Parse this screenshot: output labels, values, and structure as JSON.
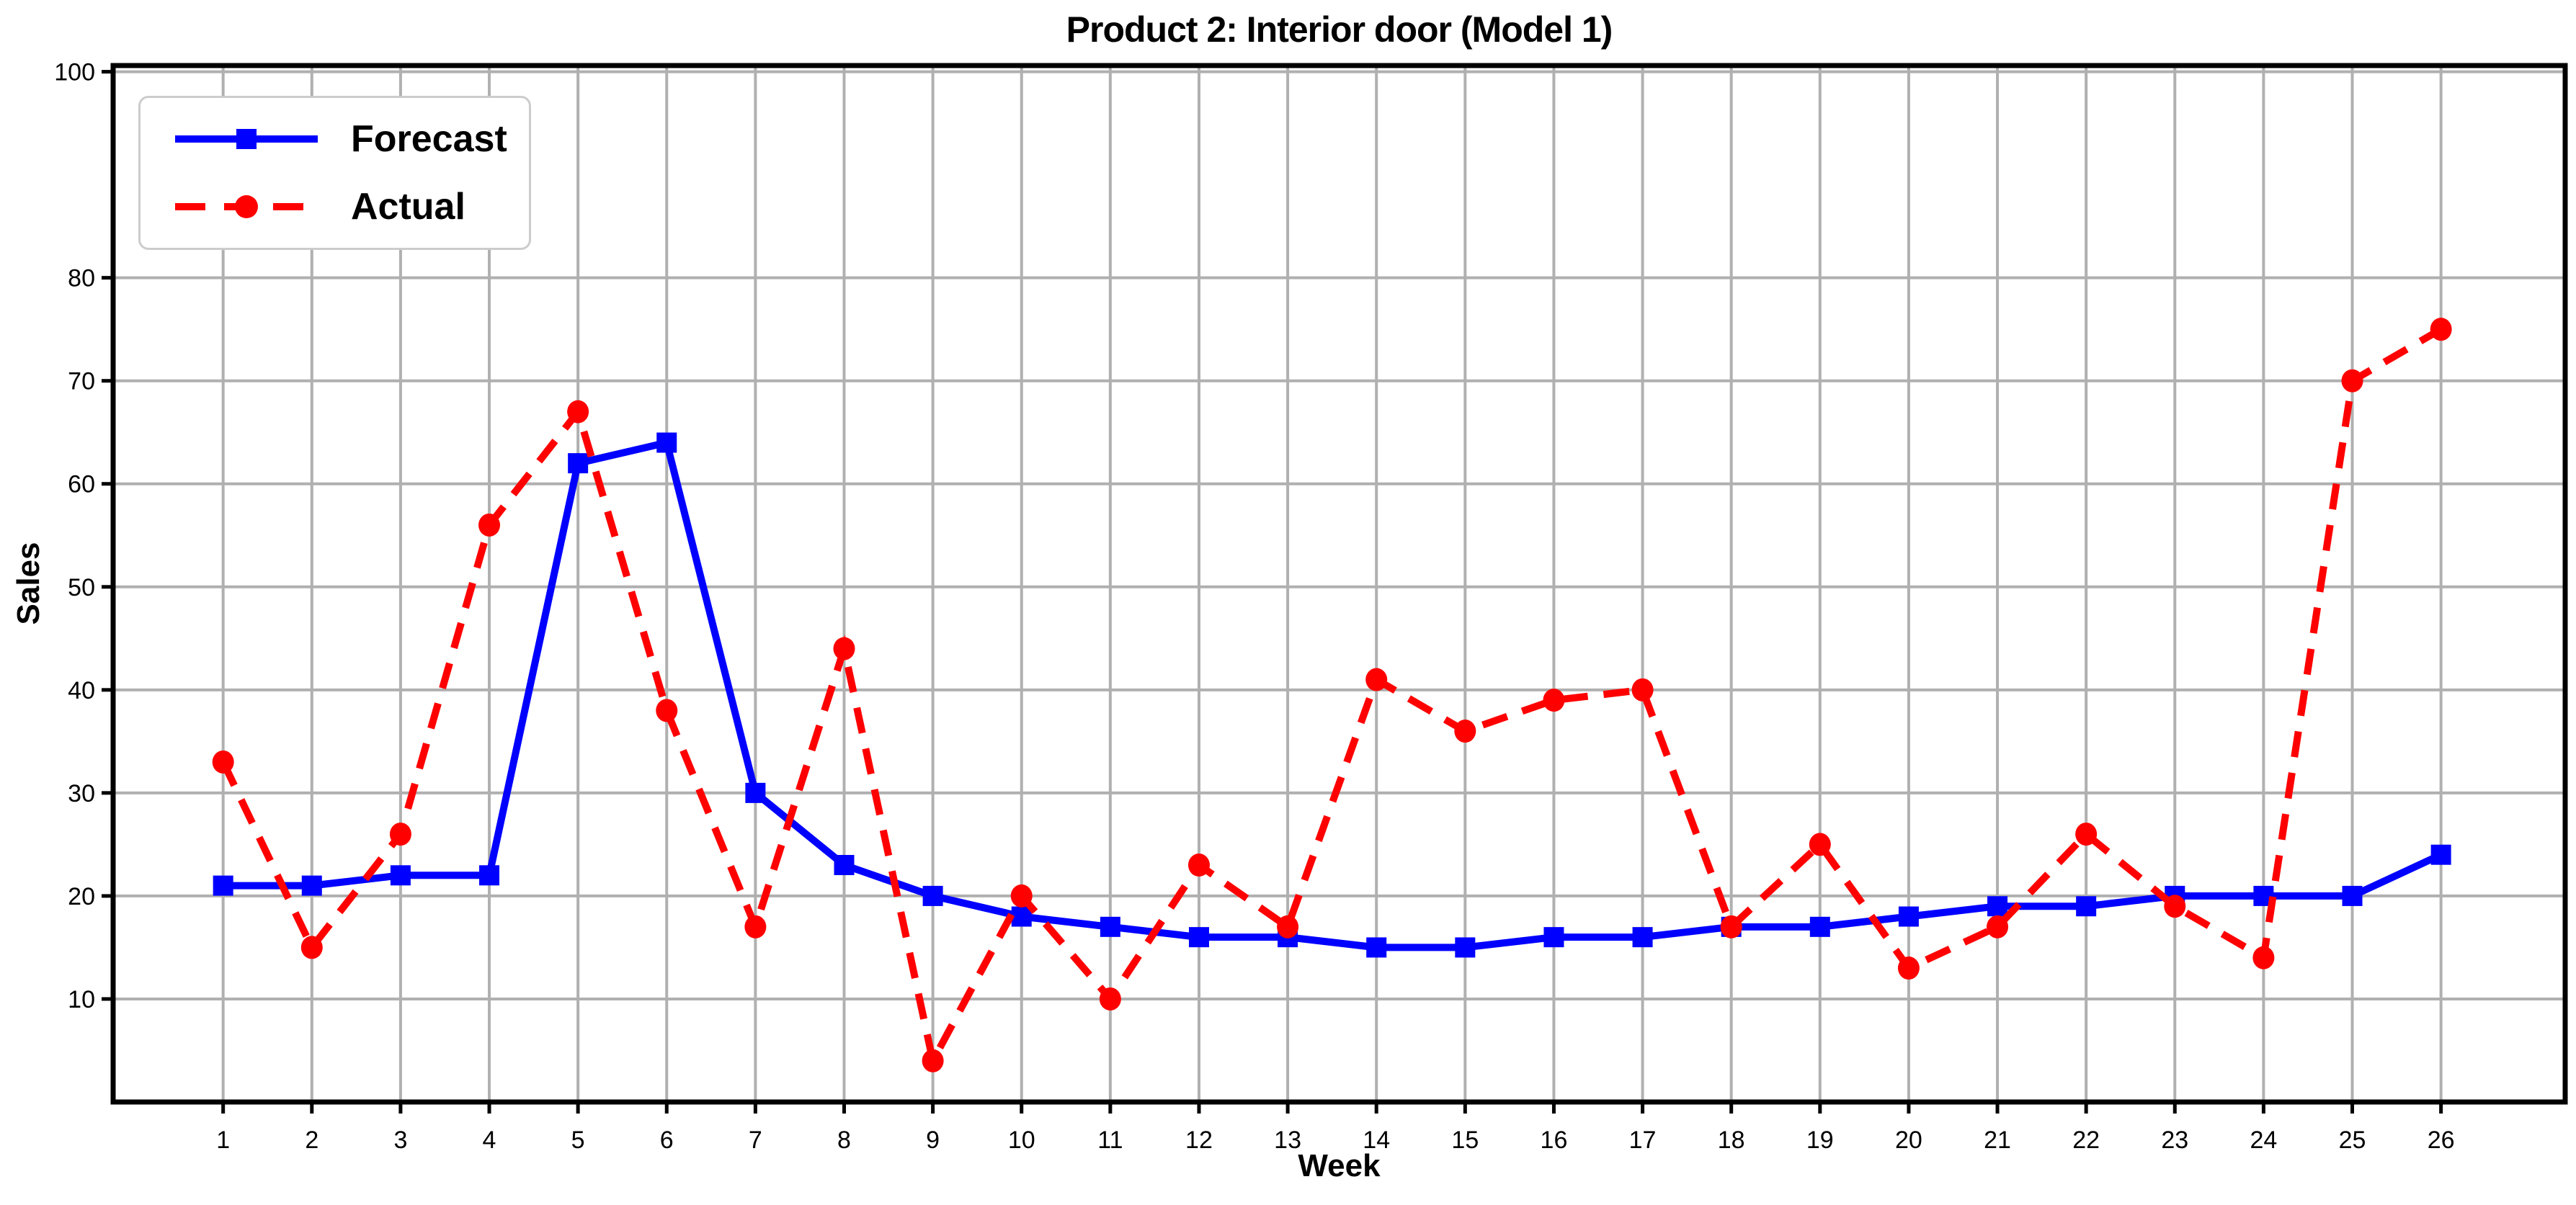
{
  "chart_data": {
    "type": "line",
    "title": "Product 2: Interior door (Model 1)",
    "xlabel": "Week",
    "ylabel": "Sales",
    "x": [
      1,
      2,
      3,
      4,
      5,
      6,
      7,
      8,
      9,
      10,
      11,
      12,
      13,
      14,
      15,
      16,
      17,
      18,
      19,
      20,
      21,
      22,
      23,
      24,
      25,
      26
    ],
    "series": [
      {
        "name": "Forecast",
        "color": "#0000ff",
        "line_style": "solid",
        "marker": "square",
        "values": [
          21,
          21,
          22,
          22,
          62,
          64,
          30,
          23,
          20,
          18,
          17,
          16,
          16,
          15,
          15,
          16,
          16,
          17,
          17,
          18,
          19,
          19,
          20,
          20,
          20,
          24
        ]
      },
      {
        "name": "Actual",
        "color": "#ff0000",
        "line_style": "dashed",
        "marker": "circle",
        "values": [
          33,
          15,
          26,
          56,
          67,
          38,
          17,
          44,
          4,
          20,
          10,
          23,
          17,
          41,
          36,
          39,
          40,
          17,
          25,
          13,
          17,
          26,
          19,
          14,
          70,
          75
        ]
      }
    ],
    "xticks": [
      1,
      2,
      3,
      4,
      5,
      6,
      7,
      8,
      9,
      10,
      11,
      12,
      13,
      14,
      15,
      16,
      17,
      18,
      19,
      20,
      21,
      22,
      23,
      24,
      25,
      26
    ],
    "yticks": [
      10,
      20,
      30,
      40,
      50,
      60,
      70,
      80,
      100
    ],
    "xlim": [
      -0.24,
      27.4
    ],
    "ylim": [
      0,
      100.6
    ],
    "grid": true,
    "legend_position": "upper-left",
    "grid_color": "#b0b0b0",
    "axis_color": "#000000",
    "background": "#ffffff"
  }
}
